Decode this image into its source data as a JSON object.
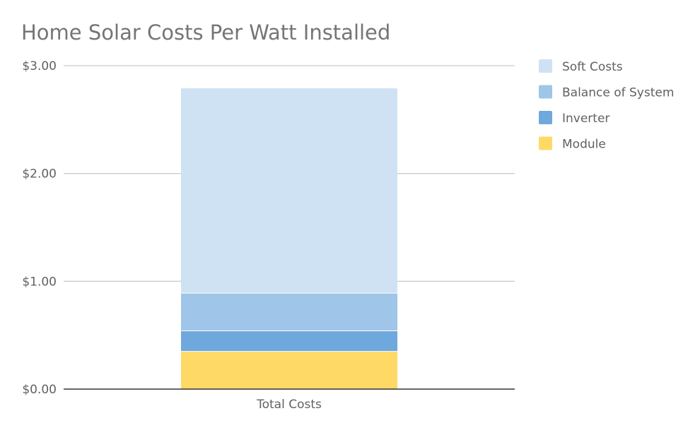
{
  "chart_data": {
    "type": "bar",
    "stacked": true,
    "title": "Home Solar Costs Per Watt Installed",
    "xlabel": "",
    "ylabel": "",
    "categories": [
      "Total Costs"
    ],
    "ylim": [
      0,
      3
    ],
    "yticks": [
      {
        "value": 0,
        "label": "$0.00"
      },
      {
        "value": 1,
        "label": "$1.00"
      },
      {
        "value": 2,
        "label": "$2.00"
      },
      {
        "value": 3,
        "label": "$3.00"
      }
    ],
    "series": [
      {
        "name": "Module",
        "values": [
          0.35
        ],
        "color": "#FFD966"
      },
      {
        "name": "Inverter",
        "values": [
          0.19
        ],
        "color": "#6FA8DC"
      },
      {
        "name": "Balance of System",
        "values": [
          0.35
        ],
        "color": "#9FC5E8"
      },
      {
        "name": "Soft Costs",
        "values": [
          1.9
        ],
        "color": "#CFE2F3"
      }
    ],
    "legend_order": [
      "Soft Costs",
      "Balance of System",
      "Inverter",
      "Module"
    ],
    "legend_position": "right",
    "grid": true
  }
}
